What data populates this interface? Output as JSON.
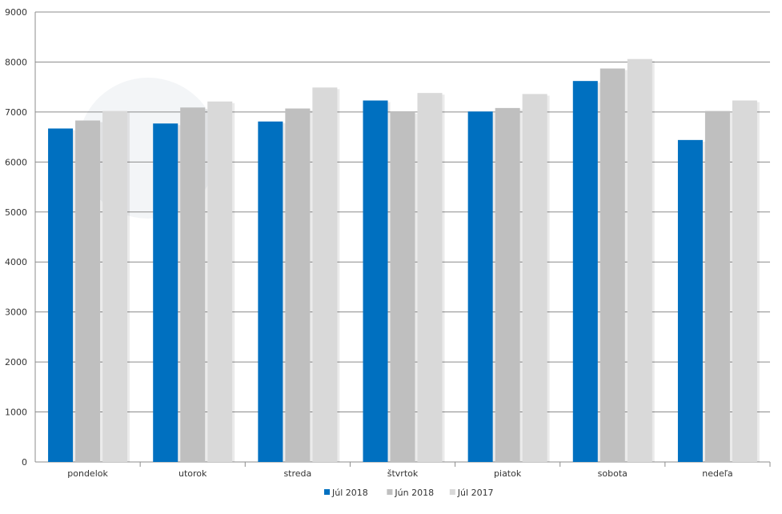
{
  "chart_data": {
    "type": "bar",
    "categories": [
      "pondelok",
      "utorok",
      "streda",
      "štvrtok",
      "piatok",
      "sobota",
      "nedeľa"
    ],
    "series": [
      {
        "name": "Júl 2018",
        "color": "#0070c0",
        "values": [
          6670,
          6770,
          6810,
          7230,
          7010,
          7620,
          6440
        ]
      },
      {
        "name": "Jún 2018",
        "color": "#bfbfbf",
        "values": [
          6830,
          7090,
          7070,
          7000,
          7080,
          7870,
          7020
        ]
      },
      {
        "name": "Júl 2017",
        "color": "#d9d9d9",
        "values": [
          7020,
          7210,
          7490,
          7380,
          7360,
          8060,
          7230
        ]
      }
    ],
    "yticks": [
      "0",
      "1000",
      "2000",
      "3000",
      "4000",
      "5000",
      "6000",
      "7000",
      "8000",
      "9000"
    ],
    "ylim": [
      0,
      9000
    ],
    "grid": true,
    "legend_position": "bottom-center",
    "title": "",
    "xlabel": "",
    "ylabel": ""
  }
}
